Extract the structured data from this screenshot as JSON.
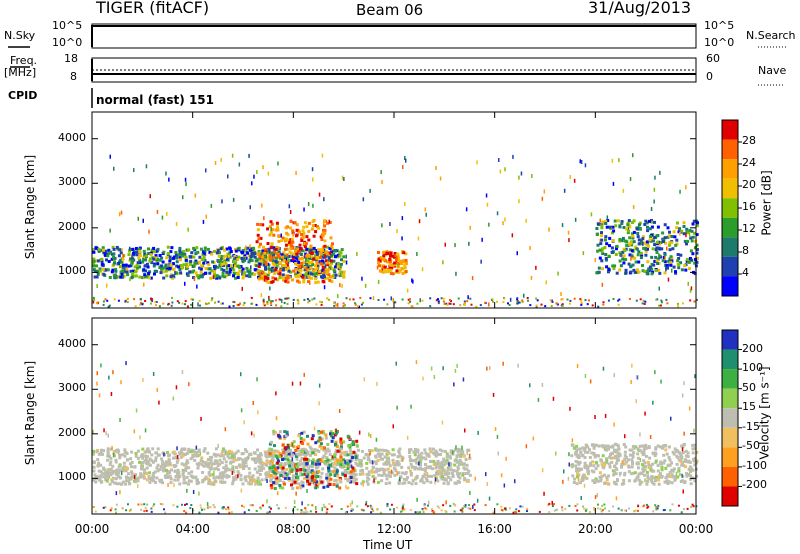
{
  "header": {
    "radar": "TIGER (fitACF)",
    "beam": "Beam 06",
    "date": "31/Aug/2013"
  },
  "status_panels": {
    "nsky_label": "N.Sky",
    "nsearch_label": "N.Search",
    "freq_label": "Freq.",
    "freq_unit": "[MHz]",
    "nave_label": "Nave",
    "cpid_label": "CPID",
    "cpid_value": "normal (fast) 151",
    "noise_ticks_left": [
      "10^5",
      "10^0"
    ],
    "noise_ticks_right": [
      "10^5",
      "10^0"
    ],
    "freq_ticks": [
      "18",
      "8"
    ],
    "nave_ticks": [
      "60",
      "0"
    ]
  },
  "chart_data": [
    {
      "type": "heatmap",
      "panel": "power",
      "ylabel": "Slant Range [km]",
      "xlabel": "",
      "x_ticks": [
        "00:00",
        "04:00",
        "08:00",
        "12:00",
        "16:00",
        "20:00",
        "00:00"
      ],
      "y_ticks": [
        "1000",
        "2000",
        "3000",
        "4000"
      ],
      "ylim": [
        200,
        4600
      ],
      "xlim_hours": [
        0,
        24
      ],
      "colorbar_label": "Power [dB]",
      "colorbar_ticks": [
        "28",
        "24",
        "20",
        "16",
        "12",
        "8",
        "4"
      ],
      "colorbar_colors": [
        "#e00000",
        "#ff6000",
        "#ffa000",
        "#f0c000",
        "#80c000",
        "#2a9d2a",
        "#1e7a6a",
        "#1e40b0",
        "#0000ff"
      ],
      "features": [
        {
          "name": "main band",
          "t_start": 0,
          "t_end": 10,
          "range_km": [
            900,
            1600
          ],
          "level": "mid"
        },
        {
          "name": "intense echoes",
          "t_start": 6.5,
          "t_end": 9.5,
          "range_km": [
            800,
            2200
          ],
          "level": "high"
        },
        {
          "name": "loop",
          "t_start": 11.3,
          "t_end": 12.5,
          "range_km": [
            1000,
            1500
          ],
          "level": "high"
        },
        {
          "name": "evening band",
          "t_start": 20,
          "t_end": 24,
          "range_km": [
            1000,
            2200
          ],
          "level": "mid"
        }
      ]
    },
    {
      "type": "heatmap",
      "panel": "velocity",
      "ylabel": "Slant Range [km]",
      "xlabel": "Time UT",
      "x_ticks": [
        "00:00",
        "04:00",
        "08:00",
        "12:00",
        "16:00",
        "20:00",
        "00:00"
      ],
      "y_ticks": [
        "1000",
        "2000",
        "3000",
        "4000"
      ],
      "ylim": [
        200,
        4600
      ],
      "xlim_hours": [
        0,
        24
      ],
      "colorbar_label": "Velocity [m s⁻¹]",
      "colorbar_ticks": [
        "200",
        "100",
        "50",
        "15",
        "-15",
        "-50",
        "-100",
        "-200"
      ],
      "colorbar_colors": [
        "#2030c0",
        "#1f8f6f",
        "#3cb040",
        "#90d050",
        "#bebeb0",
        "#f0c060",
        "#ffa020",
        "#ff6000",
        "#e00000"
      ],
      "features": [
        {
          "name": "ground scatter band",
          "t_start": 0,
          "t_end": 15,
          "range_km": [
            900,
            1700
          ],
          "level": "grey"
        },
        {
          "name": "mixed velocity",
          "t_start": 7,
          "t_end": 10.5,
          "range_km": [
            800,
            2100
          ],
          "level": "mixed"
        },
        {
          "name": "evening ground scatter",
          "t_start": 19,
          "t_end": 24,
          "range_km": [
            900,
            1800
          ],
          "level": "grey"
        }
      ]
    }
  ]
}
